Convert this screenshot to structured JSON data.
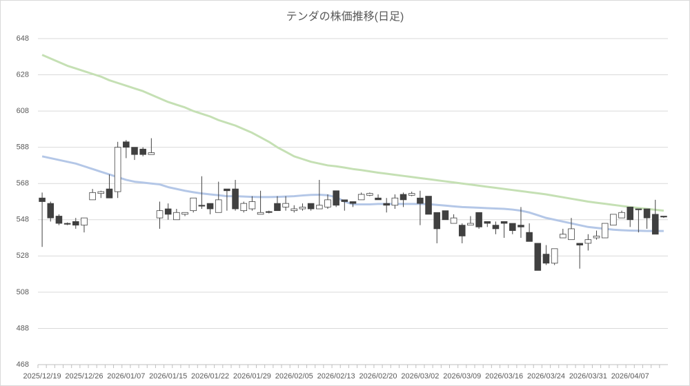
{
  "chart_data": {
    "type": "candlestick",
    "title": "テンダの株価推移(日足)",
    "categories": [
      "2025/12/19",
      null,
      null,
      null,
      null,
      "2025/12/26",
      null,
      null,
      null,
      null,
      "2026/01/07",
      null,
      null,
      null,
      null,
      "2026/01/15",
      null,
      null,
      null,
      null,
      "2026/01/22",
      null,
      null,
      null,
      null,
      "2026/01/29",
      null,
      null,
      null,
      null,
      "2026/02/05",
      null,
      null,
      null,
      null,
      "2026/02/13",
      null,
      null,
      null,
      null,
      "2026/02/20",
      null,
      null,
      null,
      null,
      "2026/03/02",
      null,
      null,
      null,
      null,
      "2026/03/09",
      null,
      null,
      null,
      null,
      "2026/03/16",
      null,
      null,
      null,
      null,
      "2026/03/24",
      null,
      null,
      null,
      null,
      "2026/03/31",
      null,
      null,
      null,
      null,
      "2026/04/07",
      null,
      null,
      null,
      null
    ],
    "open": [
      560,
      557,
      550,
      546,
      547,
      545,
      559,
      562.5,
      565,
      563.5,
      591,
      588,
      587,
      584,
      549,
      554,
      548,
      551,
      553,
      556,
      557,
      552,
      565,
      565,
      553,
      554,
      551,
      552.5,
      557,
      555,
      553,
      554,
      557,
      554,
      555,
      564,
      559,
      558,
      559,
      561.5,
      560,
      557,
      556,
      562,
      561.5,
      560,
      561,
      552,
      553,
      546,
      545,
      545,
      552,
      547,
      545,
      547,
      546,
      545,
      541,
      535,
      529,
      524,
      538,
      537,
      535,
      535,
      538,
      538,
      545,
      549,
      555,
      554,
      554,
      551,
      550
    ],
    "high": [
      563,
      558,
      551,
      546.5,
      549,
      549,
      565,
      564,
      573,
      591,
      592,
      588,
      588,
      593,
      558,
      557,
      554,
      552,
      560,
      572,
      557,
      569,
      565,
      570,
      558,
      561,
      564,
      553,
      561,
      561,
      556,
      557,
      557,
      570,
      562,
      564,
      559,
      558,
      563,
      563,
      562,
      560,
      562,
      563,
      563.5,
      564,
      561,
      552,
      553,
      551,
      546,
      550,
      552,
      547,
      547,
      547,
      546,
      555,
      546,
      535,
      534,
      532,
      543,
      549,
      535,
      540,
      542,
      546,
      551,
      553,
      555,
      554,
      554,
      559,
      550
    ],
    "low": [
      533,
      547,
      545,
      545,
      543,
      541,
      559,
      560,
      560,
      560,
      582,
      581,
      583,
      584,
      543,
      548,
      548,
      550,
      552,
      554,
      551,
      552,
      553,
      553,
      552,
      553,
      551,
      551.5,
      553,
      553,
      552,
      553,
      553,
      554,
      554,
      555,
      553,
      555,
      559,
      561,
      559,
      552,
      554,
      555,
      561,
      545,
      551,
      535,
      548,
      546,
      535,
      545,
      543,
      544,
      540,
      538,
      540,
      538,
      536,
      520,
      523,
      523,
      538,
      537,
      521,
      531,
      537,
      538,
      545,
      549,
      544,
      541,
      543,
      540,
      549
    ],
    "close": [
      558,
      549,
      546,
      545.5,
      545,
      549,
      563,
      563.5,
      560,
      588,
      588,
      584,
      584,
      585,
      553,
      551,
      552,
      552,
      560,
      555.5,
      554,
      559,
      564,
      554,
      557,
      558,
      552,
      552,
      553,
      557,
      554,
      555,
      554,
      556,
      559,
      556,
      558,
      557,
      562,
      562.5,
      559,
      556,
      560,
      559,
      562.5,
      557,
      551,
      543,
      548,
      549,
      539,
      546,
      544,
      546,
      543,
      546,
      542,
      544,
      536,
      520,
      524,
      532,
      540,
      543,
      534,
      537,
      539,
      546,
      551,
      552,
      548,
      553.5,
      549,
      540,
      549.5
    ],
    "up_color": "#ffffff",
    "down_color": "#404040",
    "lines": [
      {
        "color": "#c5e0b4",
        "values": [
          639,
          637,
          635,
          633,
          631.5,
          630,
          628.5,
          627,
          625,
          623.5,
          622,
          620.5,
          619,
          617,
          615,
          613,
          611.5,
          610,
          608,
          606.5,
          605,
          603,
          601.5,
          600,
          598,
          596,
          593.5,
          591,
          588,
          585.5,
          583,
          581.5,
          580,
          579,
          578,
          577.5,
          576.8,
          576,
          575.4,
          574.7,
          574,
          573.4,
          572.8,
          572.2,
          571.6,
          571,
          570.4,
          569.8,
          569.2,
          568.6,
          568,
          567.4,
          566.8,
          566.2,
          565.6,
          565,
          564.4,
          563.8,
          563.2,
          562.6,
          562,
          561.2,
          560.4,
          559.6,
          558.8,
          558,
          557.4,
          556.8,
          556.2,
          555.6,
          555,
          554.5,
          554,
          553.5,
          553
        ]
      },
      {
        "color": "#b4c7e7",
        "values": [
          583,
          582,
          581,
          580,
          579,
          577.5,
          576,
          574.5,
          573,
          571.5,
          570,
          569,
          568.5,
          568,
          567.5,
          566,
          565,
          564,
          563.2,
          562.5,
          562,
          561.5,
          561,
          561,
          560.8,
          560.6,
          560.5,
          560.5,
          560.6,
          560.8,
          561,
          561.4,
          561.7,
          561.8,
          561.5,
          560.5,
          558,
          556.5,
          556.5,
          556.5,
          556.7,
          556.7,
          556.7,
          556.7,
          556.7,
          556.7,
          556.6,
          556.2,
          555.8,
          555.4,
          555,
          554.8,
          554.6,
          554.4,
          554.2,
          554,
          553.6,
          553,
          552,
          550.5,
          549,
          548,
          547,
          546,
          545,
          544,
          543.5,
          543,
          542.5,
          542.2,
          542,
          541.9,
          541.8,
          541.8,
          541.8
        ]
      }
    ],
    "ylim": [
      468,
      648
    ],
    "yticks": [
      468,
      488,
      508,
      528,
      548,
      568,
      588,
      608,
      628,
      648
    ],
    "grid": true
  }
}
